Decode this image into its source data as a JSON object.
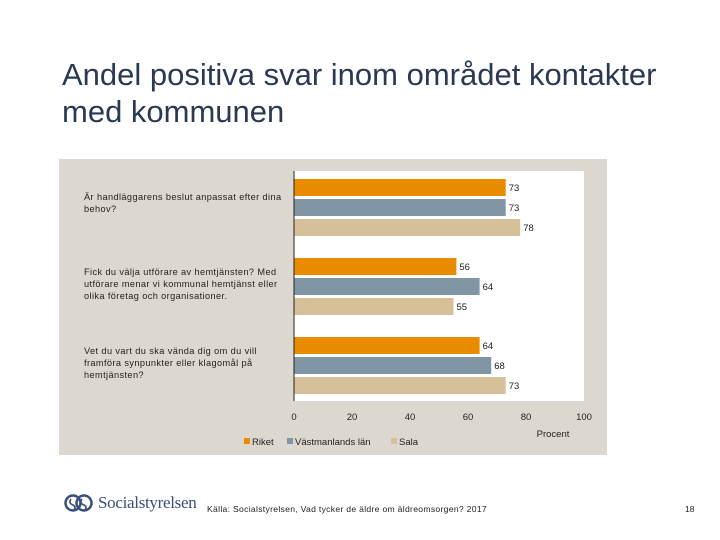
{
  "title": "Andel positiva svar inom området kontakter med kommunen",
  "chart_data": {
    "type": "bar",
    "orientation": "horizontal",
    "categories": [
      "Är handläggarens beslut anpassat efter dina behov?",
      "Fick du välja utförare av hemtjänsten? Med utförare menar vi kommunal hemtjänst eller olika företag och organisationer.",
      "Vet du vart du ska vända dig om du vill framföra synpunkter eller klagomål på hemtjänsten?"
    ],
    "series": [
      {
        "name": "Riket",
        "values": [
          73,
          56,
          64
        ],
        "color": "#e98c00"
      },
      {
        "name": "Västmanlands län",
        "values": [
          73,
          64,
          68
        ],
        "color": "#8096a4"
      },
      {
        "name": "Sala",
        "values": [
          78,
          55,
          73
        ],
        "color": "#d6c09a"
      }
    ],
    "xlim": [
      0,
      100
    ],
    "xticks": [
      "0",
      "20",
      "40",
      "60",
      "80",
      "100"
    ],
    "xlabel": "Procent",
    "legend_position": "bottom",
    "grid": false
  },
  "footer": {
    "source": "Källa: Socialstyrelsen, Vad tycker de äldre om äldreomsorgen? 2017",
    "page_number": "18",
    "logo_text": "Socialstyrelsen"
  }
}
